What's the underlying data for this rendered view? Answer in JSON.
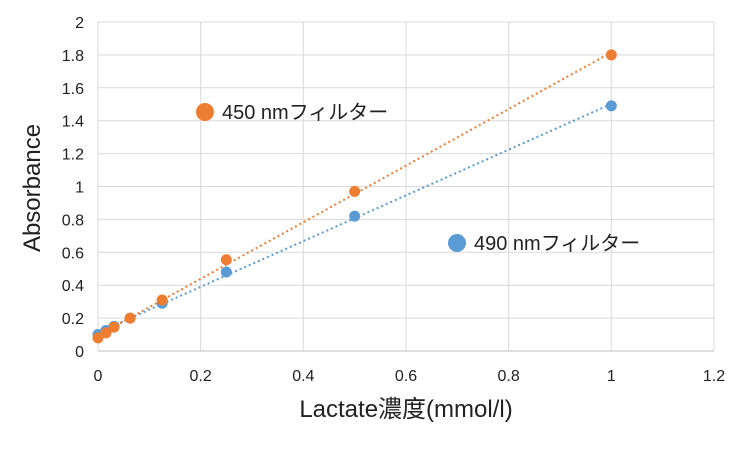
{
  "chart_data": {
    "type": "scatter",
    "title": "",
    "xlabel": "Lactate濃度(mmol/l)",
    "ylabel": "Absorbance",
    "xlim": [
      0,
      1.2
    ],
    "ylim": [
      0,
      2
    ],
    "xticks": [
      "0",
      "0.2",
      "0.4",
      "0.6",
      "0.8",
      "1",
      "1.2"
    ],
    "yticks": [
      "0",
      "0.2",
      "0.4",
      "0.6",
      "0.8",
      "1",
      "1.2",
      "1.4",
      "1.6",
      "1.8",
      "2"
    ],
    "grid": true,
    "trendlines": "linear, dotted, per series",
    "series": [
      {
        "name": "490 nmフィルター",
        "color": "#5b9bd5",
        "x": [
          0,
          0.0156,
          0.03125,
          0.0625,
          0.125,
          0.25,
          0.5,
          1
        ],
        "y": [
          0.1,
          0.125,
          0.15,
          0.2,
          0.29,
          0.48,
          0.82,
          1.49
        ]
      },
      {
        "name": "450 nmフィルター",
        "color": "#ed7d31",
        "x": [
          0,
          0.0156,
          0.03125,
          0.0625,
          0.125,
          0.25,
          0.5,
          1
        ],
        "y": [
          0.08,
          0.11,
          0.145,
          0.2,
          0.31,
          0.555,
          0.97,
          1.8
        ]
      }
    ]
  }
}
